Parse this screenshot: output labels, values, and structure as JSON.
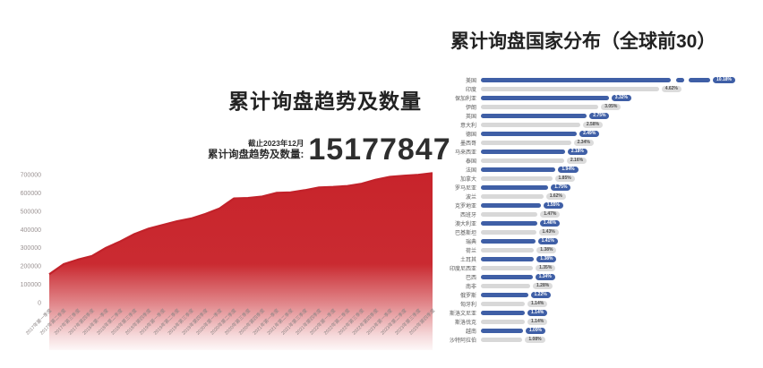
{
  "trend": {
    "title": "累计询盘趋势及数量",
    "asof": "截止2023年12月",
    "total_label": "累计询盘趋势及数量:",
    "total_value": "15177847"
  },
  "country": {
    "title": "累计询盘国家分布（全球前30）"
  },
  "theme": {
    "red_fill": "#c8242b",
    "red_line": "#c2222a",
    "blue": "#3f5fa6",
    "gray_bar": "#d8d8d8",
    "pill_gray_bg": "#dcdcdc",
    "pill_gray_text": "#4d4d4d"
  },
  "chart_data": [
    {
      "type": "area",
      "title": "累计询盘趋势及数量",
      "subtitle": "截止2023年12月",
      "annotation": "累计询盘趋势及数量: 15177847",
      "ylim": [
        0,
        700000
      ],
      "yticks": [
        0,
        100000,
        200000,
        300000,
        400000,
        500000,
        600000,
        700000
      ],
      "grid": false,
      "x": [
        "2017年第一季度",
        "2017年第二季度",
        "2017年第三季度",
        "2017年第四季度",
        "2018年第一季度",
        "2018年第二季度",
        "2018年第三季度",
        "2018年第四季度",
        "2019年第一季度",
        "2019年第二季度",
        "2019年第三季度",
        "2019年第四季度",
        "2020年第一季度",
        "2020年第二季度",
        "2020年第三季度",
        "2020年第四季度",
        "2021年第一季度",
        "2021年第二季度",
        "2021年第三季度",
        "2021年第四季度",
        "2022年第一季度",
        "2022年第二季度",
        "2022年第三季度",
        "2022年第四季度",
        "2023年第一季度",
        "2023年第二季度",
        "2023年第三季度",
        "2023年第四季度"
      ],
      "values": [
        155000,
        210000,
        235000,
        255000,
        300000,
        335000,
        375000,
        405000,
        425000,
        445000,
        460000,
        485000,
        515000,
        570000,
        572000,
        580000,
        600000,
        603000,
        615000,
        630000,
        633000,
        638000,
        650000,
        672000,
        688000,
        694000,
        699000,
        708000
      ]
    },
    {
      "type": "bar",
      "orientation": "horizontal",
      "title": "累计询盘国家分布（全球前30）",
      "unit": "%",
      "legend": null,
      "broken_bar_index": 0,
      "categories": [
        "美国",
        "印度",
        "保加利亚",
        "伊朗",
        "英国",
        "意大利",
        "德国",
        "墨西哥",
        "马来西亚",
        "泰国",
        "法国",
        "加拿大",
        "罗马尼亚",
        "波兰",
        "克罗地亚",
        "西班牙",
        "澳大利亚",
        "巴基斯坦",
        "瑞典",
        "荷兰",
        "土耳其",
        "印度尼西亚",
        "巴西",
        "南非",
        "俄罗斯",
        "匈牙利",
        "斯洛文尼亚",
        "斯洛伐克",
        "越南",
        "沙特阿拉伯"
      ],
      "values": [
        10.18,
        4.62,
        3.32,
        3.05,
        2.75,
        2.58,
        2.49,
        2.34,
        2.18,
        2.16,
        1.94,
        1.85,
        1.75,
        1.62,
        1.55,
        1.47,
        1.46,
        1.43,
        1.41,
        1.38,
        1.38,
        1.35,
        1.34,
        1.28,
        1.22,
        1.14,
        1.14,
        1.14,
        1.09,
        1.08
      ]
    }
  ]
}
